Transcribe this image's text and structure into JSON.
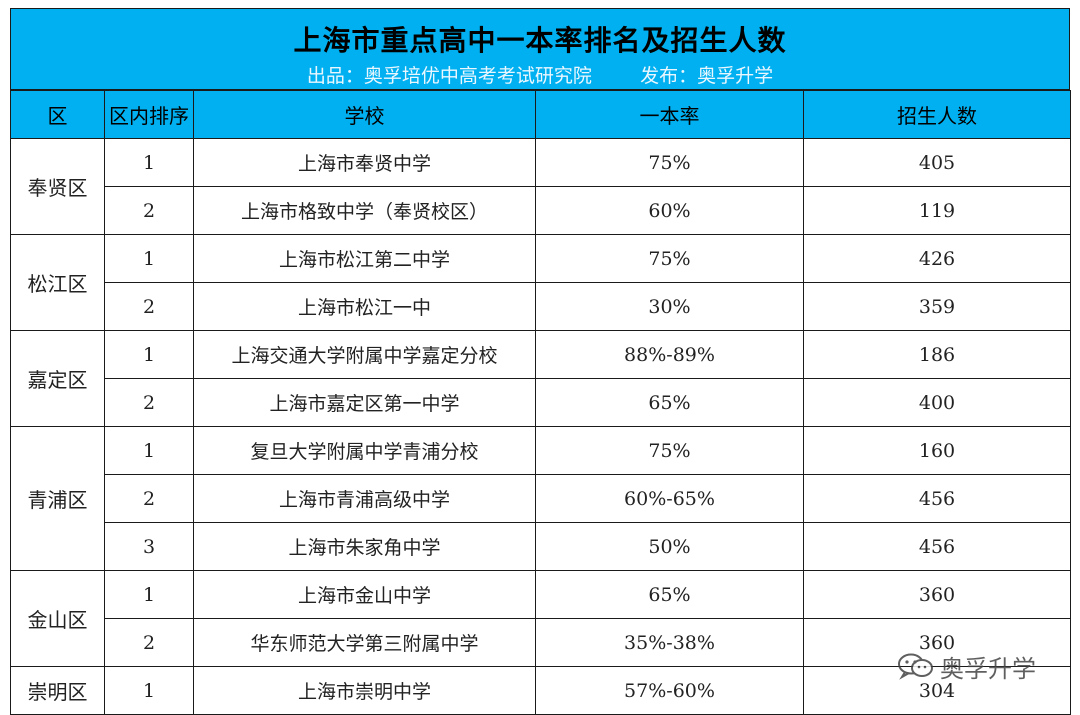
{
  "title": "上海市重点高中一本率排名及招生人数",
  "subtitle": "出品：奥孚培优中高考考试研究院        发布：奥孚升学",
  "columns": [
    "区",
    "区内排序",
    "学校",
    "一本率",
    "招生人数"
  ],
  "rows": [
    {
      "district": "奉贤区",
      "rank": "1",
      "school": "上海市奉贤中学",
      "rate": "75%",
      "enroll": "405"
    },
    {
      "district": "",
      "rank": "2",
      "school": "上海市格致中学（奉贤校区）",
      "rate": "60%",
      "enroll": "119"
    },
    {
      "district": "松江区",
      "rank": "1",
      "school": "上海市松江第二中学",
      "rate": "75%",
      "enroll": "426"
    },
    {
      "district": "",
      "rank": "2",
      "school": "上海市松江一中",
      "rate": "30%",
      "enroll": "359"
    },
    {
      "district": "嘉定区",
      "rank": "1",
      "school": "上海交通大学附属中学嘉定分校",
      "rate": "88%-89%",
      "enroll": "186"
    },
    {
      "district": "",
      "rank": "2",
      "school": "上海市嘉定区第一中学",
      "rate": "65%",
      "enroll": "400"
    },
    {
      "district": "青浦区",
      "rank": "1",
      "school": "复旦大学附属中学青浦分校",
      "rate": "75%",
      "enroll": "160"
    },
    {
      "district": "",
      "rank": "2",
      "school": "上海市青浦高级中学",
      "rate": "60%-65%",
      "enroll": "456"
    },
    {
      "district": "",
      "rank": "3",
      "school": "上海市朱家角中学",
      "rate": "50%",
      "enroll": "456"
    },
    {
      "district": "金山区",
      "rank": "1",
      "school": "上海市金山中学",
      "rate": "65%",
      "enroll": "360"
    },
    {
      "district": "",
      "rank": "2",
      "school": "华东师范大学第三附属中学",
      "rate": "35%-38%",
      "enroll": "360"
    },
    {
      "district": "崇明区",
      "rank": "1",
      "school": "上海市崇明中学",
      "rate": "57%-60%",
      "enroll": "304"
    }
  ],
  "watermark": "奥孚升学",
  "colors": {
    "header_bg": "#00b0f0",
    "border": "#1a1a1a"
  }
}
